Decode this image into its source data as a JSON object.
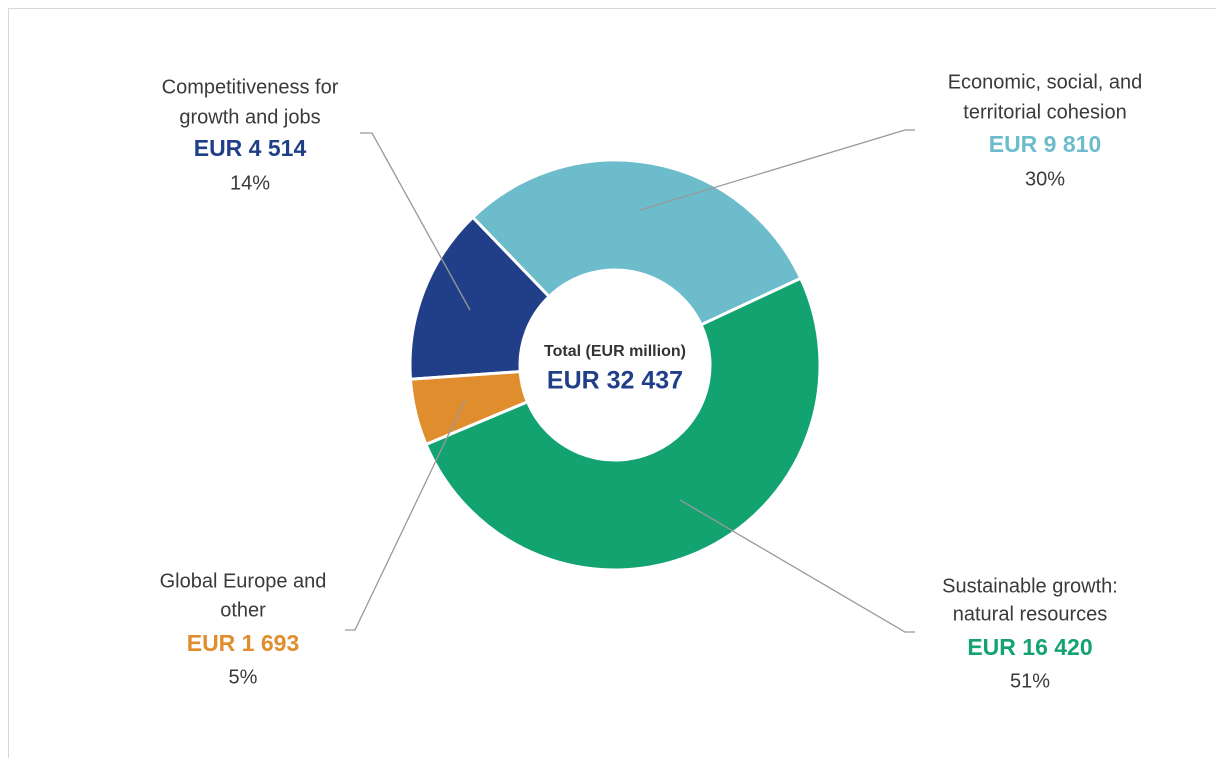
{
  "chart_data": {
    "type": "donut",
    "center_title": "Total (EUR million)",
    "center_value": "EUR 32 437",
    "categories": [
      [
        "Competitiveness for",
        "growth and jobs"
      ],
      [
        "Economic, social, and",
        "territorial cohesion"
      ],
      [
        "Sustainable growth:",
        "natural resources"
      ],
      [
        "Global Europe and",
        "other"
      ]
    ],
    "values": [
      4514,
      9810,
      16420,
      1693
    ],
    "value_labels": [
      "EUR 4 514",
      "EUR 9 810",
      "EUR 16 420",
      "EUR 1 693"
    ],
    "percent_labels": [
      "14%",
      "30%",
      "51%",
      "5%"
    ],
    "colors": [
      "#203f88",
      "#6cbccb",
      "#12a371",
      "#e08d2d"
    ]
  }
}
